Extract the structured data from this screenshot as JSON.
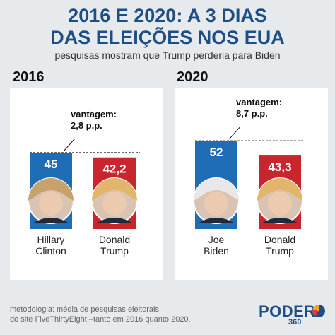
{
  "header": {
    "title_line1": "2016 E 2020: A 3 DIAS",
    "title_line2": "DAS ELEIÇÕES NOS EUA",
    "subtitle": "pesquisas mostram que Trump perderia para Biden"
  },
  "footer": {
    "note_line1": "metodologia: média de pesquisas eleitorais",
    "note_line2": "do site FiveThirtyEight –tanto em 2016 quanto 2020.",
    "logo_text": "PODER",
    "logo_number": "360"
  },
  "colors": {
    "democrat": "#1f6db5",
    "republican": "#c9252c",
    "title": "#1d4f86"
  },
  "chart_data": [
    {
      "type": "bar",
      "title": "2016",
      "categories": [
        "Hillary Clinton",
        "Donald Trump"
      ],
      "label_lines": [
        [
          "Hillary",
          "Clinton"
        ],
        [
          "Donald",
          "Trump"
        ]
      ],
      "values": [
        45,
        42.2
      ],
      "value_labels": [
        "45",
        "42,2"
      ],
      "colors": [
        "#1f6db5",
        "#c9252c"
      ],
      "annotation": {
        "line1": "vantagem:",
        "line2": "2,8 p.p.",
        "value": 2.8
      },
      "ylim": [
        0,
        55
      ]
    },
    {
      "type": "bar",
      "title": "2020",
      "categories": [
        "Joe Biden",
        "Donald Trump"
      ],
      "label_lines": [
        [
          "Joe",
          "Biden"
        ],
        [
          "Donald",
          "Trump"
        ]
      ],
      "values": [
        52,
        43.3
      ],
      "value_labels": [
        "52",
        "43,3"
      ],
      "colors": [
        "#1f6db5",
        "#c9252c"
      ],
      "annotation": {
        "line1": "vantagem:",
        "line2": "8,7 p.p.",
        "value": 8.7
      },
      "ylim": [
        0,
        55
      ]
    }
  ]
}
